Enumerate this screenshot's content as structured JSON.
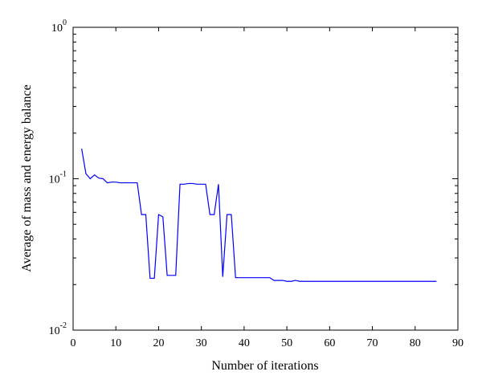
{
  "chart_data": {
    "type": "line",
    "title": "",
    "xlabel": "Number of iterations",
    "ylabel": "Average of mass and energy balance",
    "xlim": [
      0,
      90
    ],
    "ylim": [
      0.01,
      1
    ],
    "yscale": "log",
    "grid": false,
    "legend": "none",
    "x_ticks": [
      "0",
      "10",
      "20",
      "30",
      "40",
      "50",
      "60",
      "70",
      "80",
      "90"
    ],
    "y_ticks": [
      {
        "base": "10",
        "exp": "0"
      },
      {
        "base": "10",
        "exp": "-1"
      },
      {
        "base": "10",
        "exp": "-2"
      }
    ],
    "series": [
      {
        "color": "#0000ff",
        "x": [
          2,
          3,
          4,
          5,
          6,
          7,
          8,
          9,
          10,
          11,
          12,
          13,
          14,
          15,
          16,
          17,
          18,
          19,
          20,
          21,
          22,
          23,
          24,
          25,
          26,
          27,
          28,
          29,
          30,
          31,
          32,
          33,
          34,
          35,
          36,
          37,
          38,
          40,
          42,
          44,
          46,
          47,
          48,
          49,
          50,
          51,
          52,
          53,
          55,
          60,
          65,
          70,
          75,
          80,
          85
        ],
        "y": [
          0.158,
          0.108,
          0.1,
          0.106,
          0.101,
          0.1,
          0.094,
          0.095,
          0.095,
          0.094,
          0.094,
          0.094,
          0.094,
          0.094,
          0.058,
          0.058,
          0.022,
          0.022,
          0.058,
          0.056,
          0.023,
          0.023,
          0.023,
          0.092,
          0.092,
          0.093,
          0.093,
          0.092,
          0.092,
          0.092,
          0.058,
          0.058,
          0.092,
          0.0225,
          0.058,
          0.058,
          0.0222,
          0.0222,
          0.0222,
          0.0222,
          0.0222,
          0.0213,
          0.0213,
          0.0213,
          0.021,
          0.021,
          0.0213,
          0.021,
          0.021,
          0.021,
          0.021,
          0.021,
          0.021,
          0.021,
          0.021
        ]
      }
    ]
  }
}
